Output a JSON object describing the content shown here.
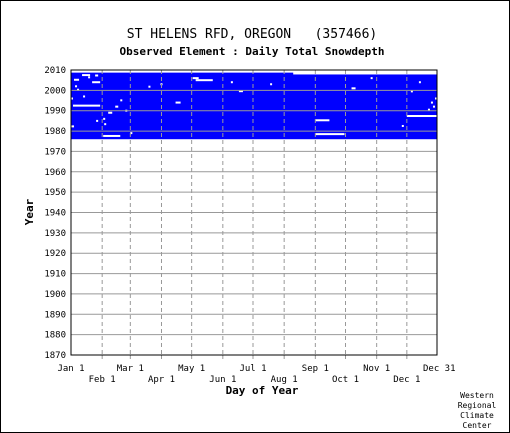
{
  "chart_data": {
    "type": "heatmap",
    "title": "ST HELENS RFD, OREGON   (357466)",
    "subtitle": "Observed Element : Daily Total Snowdepth",
    "xlabel": "Day of Year",
    "ylabel": "Year",
    "credit": [
      "Western",
      "Regional",
      "Climate",
      "Center"
    ],
    "x_ticks_upper": [
      {
        "label": "Jan 1",
        "day": 1
      },
      {
        "label": "Mar 1",
        "day": 60
      },
      {
        "label": "May 1",
        "day": 121
      },
      {
        "label": "Jul 1",
        "day": 182
      },
      {
        "label": "Sep 1",
        "day": 244
      },
      {
        "label": "Nov 1",
        "day": 305
      },
      {
        "label": "Dec 31",
        "day": 365
      }
    ],
    "x_ticks_lower": [
      {
        "label": "Feb 1",
        "day": 32
      },
      {
        "label": "Apr 1",
        "day": 91
      },
      {
        "label": "Jun 1",
        "day": 152
      },
      {
        "label": "Aug 1",
        "day": 213
      },
      {
        "label": "Oct 1",
        "day": 274
      },
      {
        "label": "Dec 1",
        "day": 335
      }
    ],
    "xlim": [
      1,
      365
    ],
    "y_ticks": [
      "2010",
      "2000",
      "1990",
      "1980",
      "1970",
      "1960",
      "1950",
      "1940",
      "1930",
      "1920",
      "1910",
      "1900",
      "1890",
      "1880",
      "1870"
    ],
    "ylim": [
      1870,
      2010
    ],
    "grid": true,
    "data_color": "#0000ff",
    "missing_color": "#ffffff",
    "observed_block": {
      "day_start": 1,
      "day_end": 365,
      "year_start": 1976,
      "year_end": 2009.5
    },
    "missing_segments": [
      {
        "d0": 1,
        "d1": 365,
        "year": 2009.2
      },
      {
        "d0": 3,
        "d1": 30,
        "year": 1992.5
      },
      {
        "d0": 1,
        "d1": 4,
        "year": 1982.3
      },
      {
        "d0": 33,
        "d1": 50,
        "year": 1977.6
      },
      {
        "d0": 4,
        "d1": 9,
        "year": 2005.2
      },
      {
        "d0": 22,
        "d1": 30,
        "year": 2004.0
      },
      {
        "d0": 12,
        "d1": 20,
        "year": 2007.5
      },
      {
        "d0": 25,
        "d1": 28,
        "year": 2007.3
      },
      {
        "d0": 45,
        "d1": 48,
        "year": 1992.0
      },
      {
        "d0": 38,
        "d1": 42,
        "year": 1989.0
      },
      {
        "d0": 33,
        "d1": 35,
        "year": 1986.0
      },
      {
        "d0": 90,
        "d1": 92,
        "year": 2003.0
      },
      {
        "d0": 78,
        "d1": 80,
        "year": 2001.8
      },
      {
        "d0": 105,
        "d1": 110,
        "year": 1994.0
      },
      {
        "d0": 125,
        "d1": 142,
        "year": 2005.0
      },
      {
        "d0": 122,
        "d1": 128,
        "year": 2006.0
      },
      {
        "d0": 160,
        "d1": 162,
        "year": 2004.0
      },
      {
        "d0": 222,
        "d1": 365,
        "year": 2008.3
      },
      {
        "d0": 244,
        "d1": 258,
        "year": 1985.3
      },
      {
        "d0": 244,
        "d1": 273,
        "year": 1978.5
      },
      {
        "d0": 335,
        "d1": 365,
        "year": 1987.4
      },
      {
        "d0": 330,
        "d1": 332,
        "year": 1982.5
      },
      {
        "d0": 356,
        "d1": 358,
        "year": 1990.5
      },
      {
        "d0": 280,
        "d1": 284,
        "year": 2001.0
      },
      {
        "d0": 168,
        "d1": 172,
        "year": 1999.6
      }
    ],
    "missing_dots": [
      {
        "day": 8,
        "year": 2000.3
      },
      {
        "day": 19,
        "year": 2006.4
      },
      {
        "day": 14,
        "year": 1997.0
      },
      {
        "day": 27,
        "year": 1985.0
      },
      {
        "day": 35,
        "year": 1983.4
      },
      {
        "day": 51,
        "year": 1995.1
      },
      {
        "day": 56,
        "year": 1990.0
      },
      {
        "day": 200,
        "year": 2003.0
      },
      {
        "day": 300,
        "year": 2006.0
      },
      {
        "day": 340,
        "year": 1999.5
      },
      {
        "day": 360,
        "year": 1994.0
      },
      {
        "day": 362,
        "year": 1992.0
      },
      {
        "day": 364,
        "year": 1996.0
      },
      {
        "day": 348,
        "year": 2004.0
      },
      {
        "day": 61,
        "year": 1979.0
      },
      {
        "day": 2,
        "year": 1996.0
      },
      {
        "day": 6,
        "year": 2002.0
      }
    ]
  }
}
